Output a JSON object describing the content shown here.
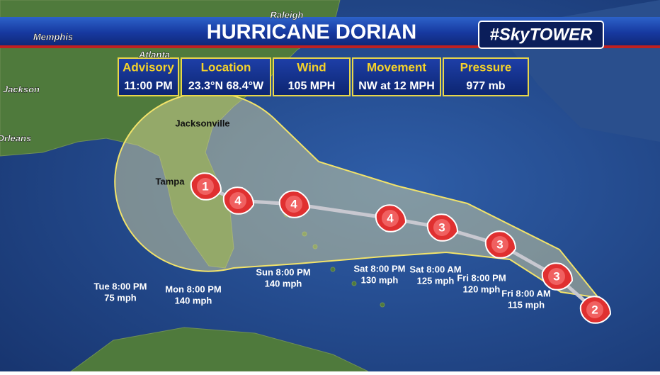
{
  "header": {
    "title": "HURRICANE DORIAN",
    "brand": "#SkyTOWER"
  },
  "info_table": [
    {
      "label": "Advisory",
      "value": "11:00 PM"
    },
    {
      "label": "Location",
      "value": "23.3°N  68.4°W"
    },
    {
      "label": "Wind",
      "value": "105 MPH"
    },
    {
      "label": "Movement",
      "value": "NW at 12 MPH"
    },
    {
      "label": "Pressure",
      "value": "977 mb"
    }
  ],
  "places": [
    "Raleigh",
    "Memphis",
    "Atlanta",
    "Jackson",
    "Orleans",
    "Jacksonville",
    "Tampa"
  ],
  "forecast": [
    {
      "category": 2
    },
    {
      "category": 3,
      "time": "Fri 8:00 AM",
      "wind": "115 mph"
    },
    {
      "category": 3,
      "time": "Fri 8:00 PM",
      "wind": "120 mph"
    },
    {
      "category": 3,
      "time": "Sat 8:00 AM",
      "wind": "125 mph"
    },
    {
      "category": 4,
      "time": "Sat 8:00 PM",
      "wind": "130 mph"
    },
    {
      "category": 4,
      "time": "Sun 8:00 PM",
      "wind": "140 mph"
    },
    {
      "category": 4,
      "time": "Mon 8:00 PM",
      "wind": "140 mph"
    },
    {
      "category": 1,
      "time": "Tue 8:00 PM",
      "wind": "75 mph"
    }
  ]
}
